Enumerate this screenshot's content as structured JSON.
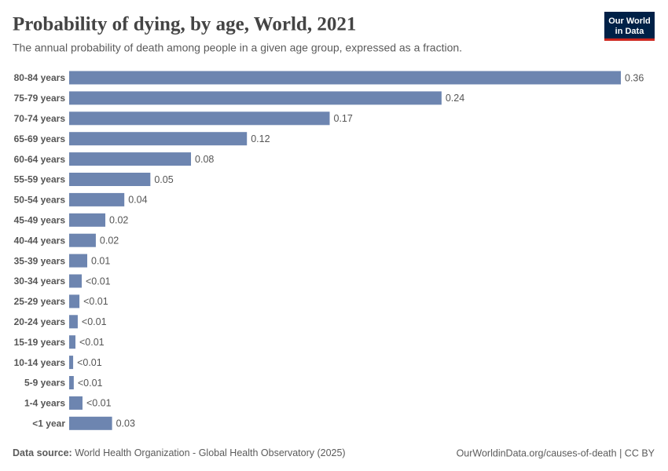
{
  "chart_data": {
    "type": "bar",
    "orientation": "horizontal",
    "title": "Probability of dying, by age, World, 2021",
    "subtitle": "The annual probability of death among people in a given age group, expressed as a fraction.",
    "logo": [
      "Our World",
      "in Data"
    ],
    "source_label": "Data source:",
    "source": "World Health Organization - Global Health Observatory (2025)",
    "credit": "OurWorldinData.org/causes-of-death | CC BY",
    "color": "#6d85b0",
    "categories": [
      "80-84 years",
      "75-79 years",
      "70-74 years",
      "65-69 years",
      "60-64 years",
      "55-59 years",
      "50-54 years",
      "45-49 years",
      "40-44 years",
      "35-39 years",
      "30-34 years",
      "25-29 years",
      "20-24 years",
      "15-19 years",
      "10-14 years",
      "5-9 years",
      "1-4 years",
      "<1 year"
    ],
    "values": [
      0.36,
      0.243,
      0.17,
      0.116,
      0.0795,
      0.053,
      0.036,
      0.0236,
      0.0174,
      0.0118,
      0.0082,
      0.0067,
      0.0056,
      0.0041,
      0.0026,
      0.003,
      0.0087,
      0.028
    ],
    "value_labels": [
      "0.36",
      "0.24",
      "0.17",
      "0.12",
      "0.08",
      "0.05",
      "0.04",
      "0.02",
      "0.02",
      "0.01",
      "<0.01",
      "<0.01",
      "<0.01",
      "<0.01",
      "<0.01",
      "<0.01",
      "<0.01",
      "0.03"
    ]
  }
}
